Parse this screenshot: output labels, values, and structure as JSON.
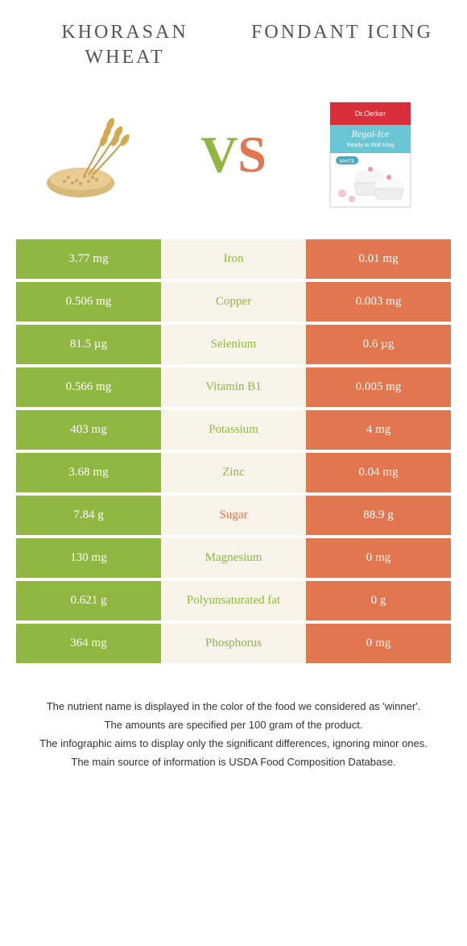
{
  "header": {
    "left_title": "KHORASAN WHEAT",
    "right_title": "FONDANT ICING"
  },
  "vs": {
    "v": "V",
    "s": "S"
  },
  "colors": {
    "left": "#8fb741",
    "right": "#e2764f",
    "mid_bg": "#f7f3e8"
  },
  "nutrients": [
    {
      "name": "Iron",
      "left": "3.77 mg",
      "right": "0.01 mg",
      "winner": "left"
    },
    {
      "name": "Copper",
      "left": "0.506 mg",
      "right": "0.003 mg",
      "winner": "left"
    },
    {
      "name": "Selenium",
      "left": "81.5 µg",
      "right": "0.6 µg",
      "winner": "left"
    },
    {
      "name": "Vitamin B1",
      "left": "0.566 mg",
      "right": "0.005 mg",
      "winner": "left"
    },
    {
      "name": "Potassium",
      "left": "403 mg",
      "right": "4 mg",
      "winner": "left"
    },
    {
      "name": "Zinc",
      "left": "3.68 mg",
      "right": "0.04 mg",
      "winner": "left"
    },
    {
      "name": "Sugar",
      "left": "7.84 g",
      "right": "88.9 g",
      "winner": "right"
    },
    {
      "name": "Magnesium",
      "left": "130 mg",
      "right": "0 mg",
      "winner": "left"
    },
    {
      "name": "Polyunsaturated fat",
      "left": "0.621 g",
      "right": "0 g",
      "winner": "left"
    },
    {
      "name": "Phosphorus",
      "left": "364 mg",
      "right": "0 mg",
      "winner": "left"
    }
  ],
  "footer": {
    "line1": "The nutrient name is displayed in the color of the food we considered as 'winner'.",
    "line2": "The amounts are specified per 100 gram of the product.",
    "line3": "The infographic aims to display only the significant differences, ignoring minor ones.",
    "line4": "The main source of information is USDA Food Composition Database."
  }
}
